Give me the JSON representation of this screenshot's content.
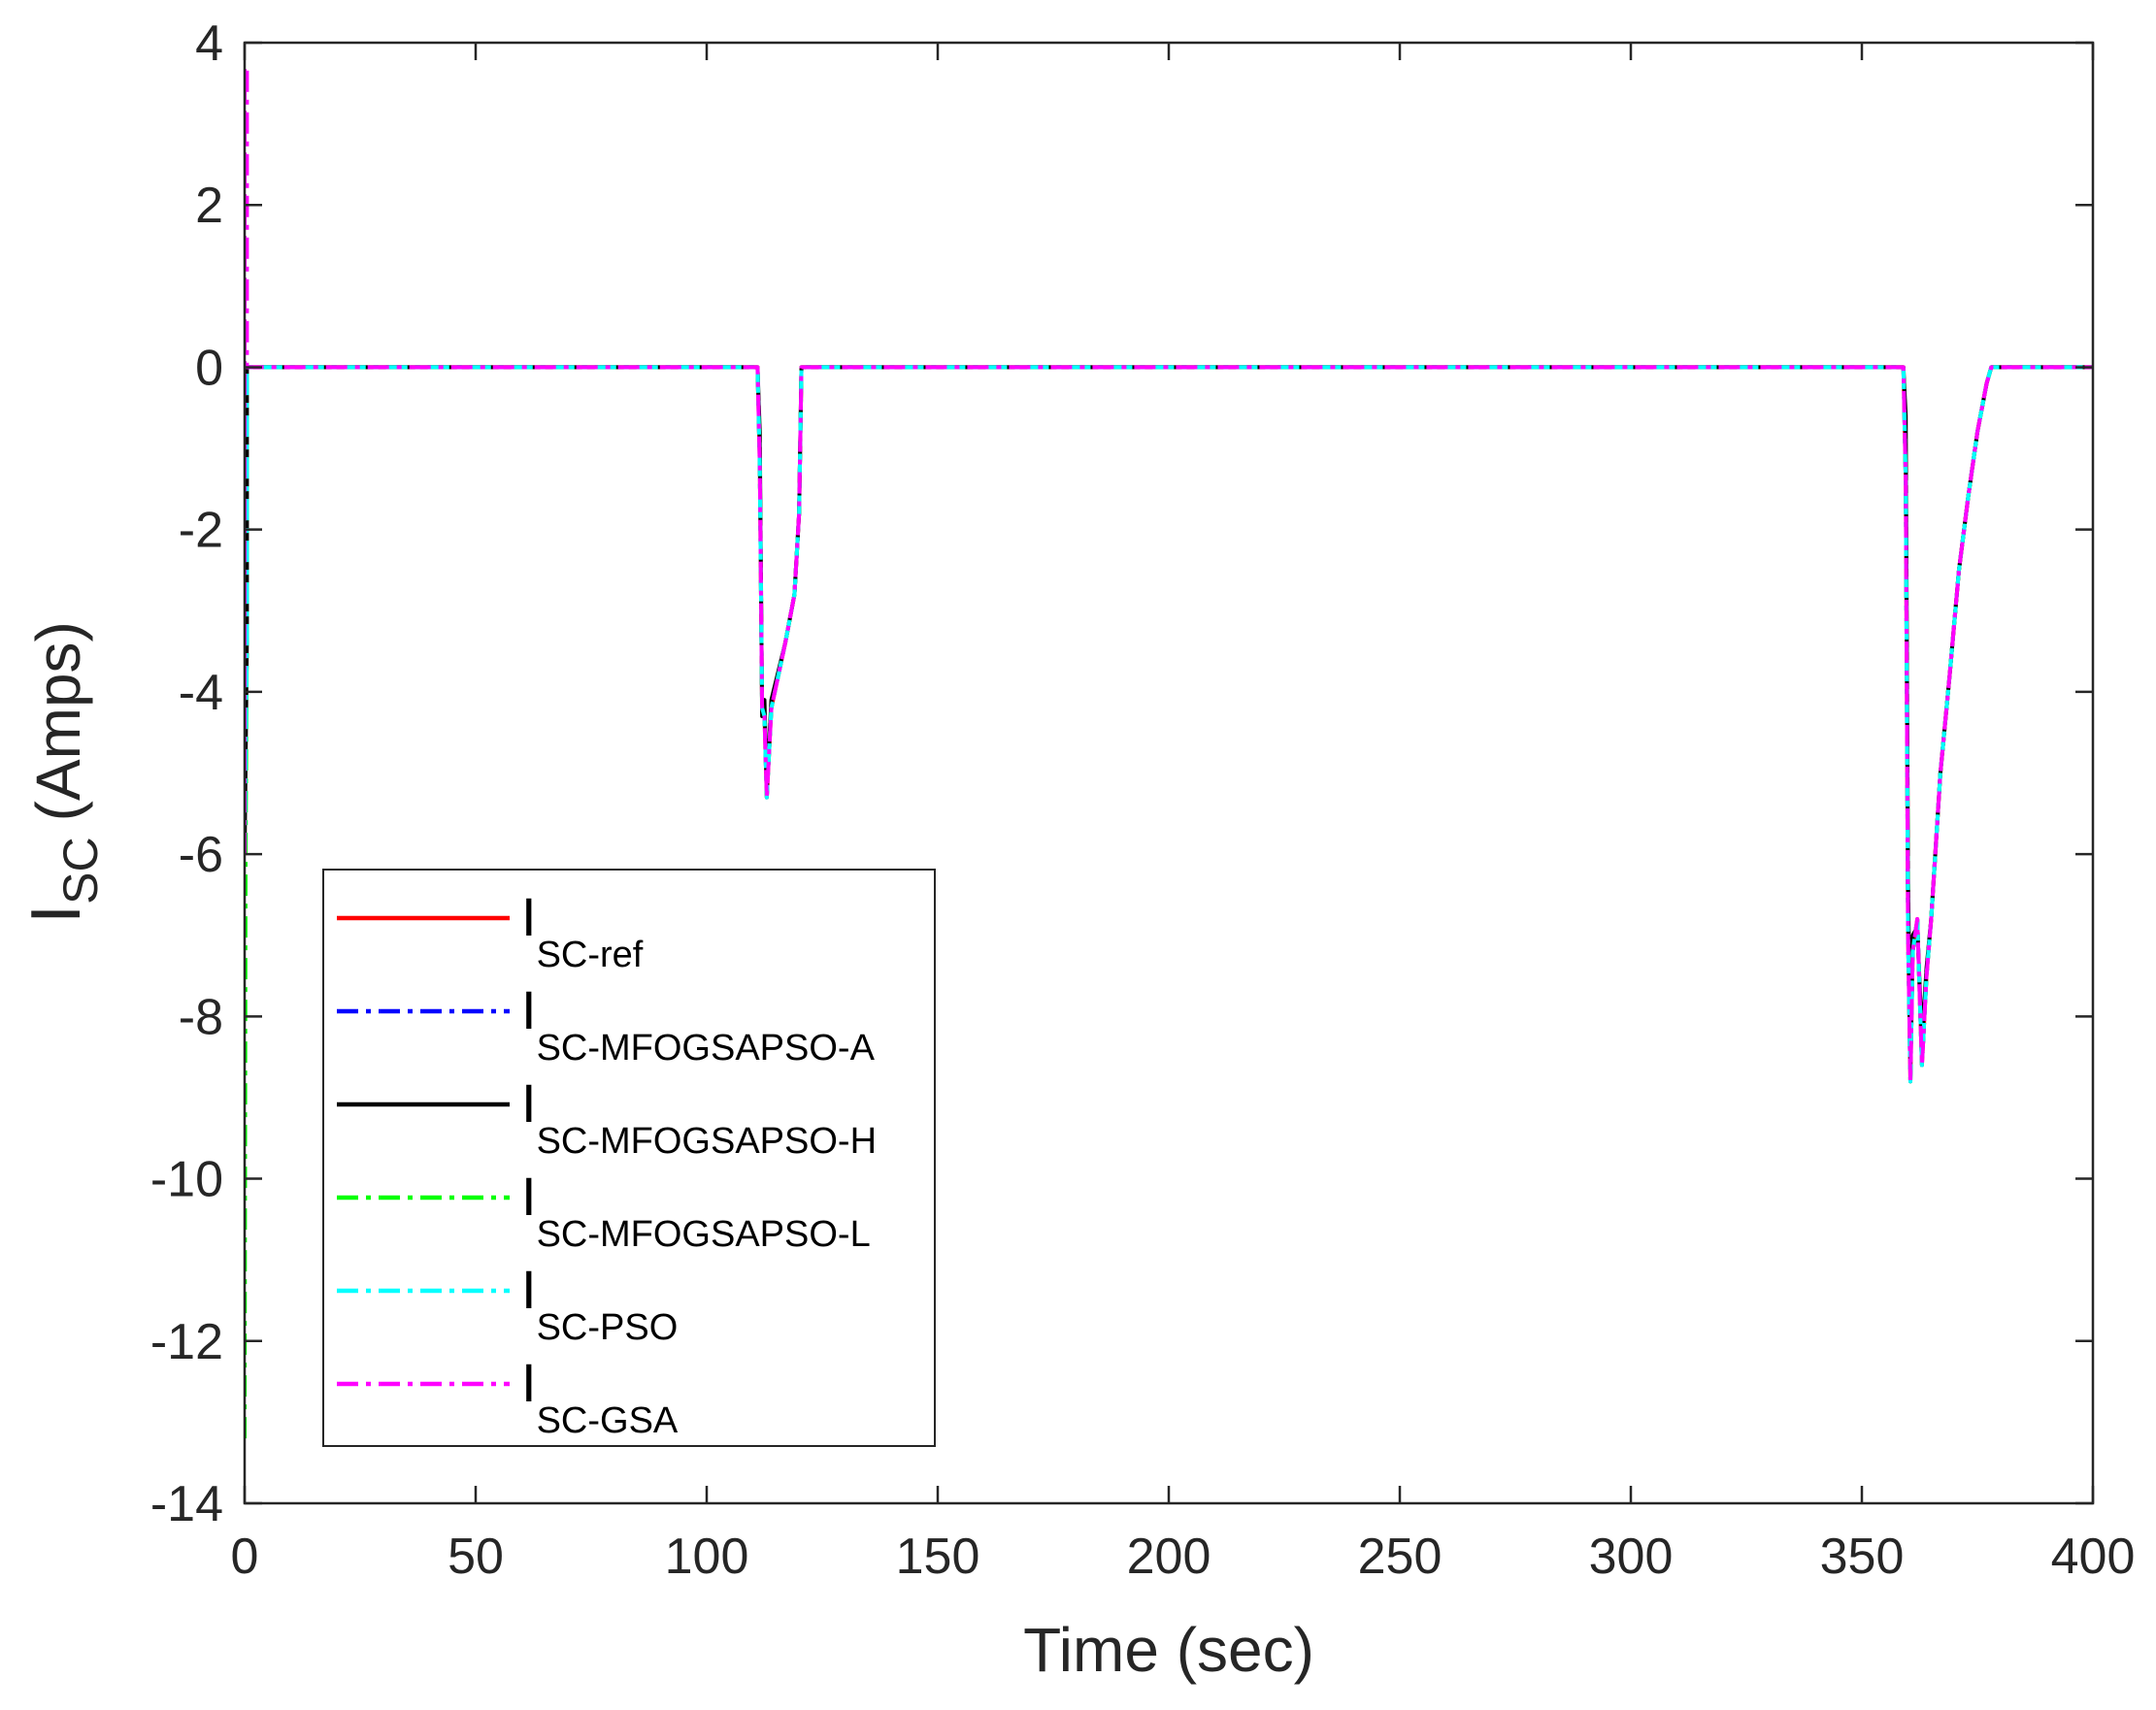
{
  "chart_data": {
    "type": "line",
    "title": "",
    "xlabel": "Time (sec)",
    "ylabel": {
      "main": "I",
      "sub": "SC",
      "unit": "(Amps)"
    },
    "xlim": [
      0,
      400
    ],
    "ylim": [
      -14,
      4
    ],
    "xticks": [
      0,
      50,
      100,
      150,
      200,
      250,
      300,
      350,
      400
    ],
    "yticks": [
      4,
      2,
      0,
      -2,
      -4,
      -6,
      -8,
      -10,
      -12,
      -14
    ],
    "grid": false,
    "box": true,
    "legend_position": "lower-left",
    "series": [
      {
        "name": "I",
        "sub": "SC-ref",
        "color": "#ff0000",
        "style": "solid",
        "x": [
          0,
          0.5,
          0.5,
          111,
          111.5,
          112,
          112.5,
          113,
          114,
          117,
          119,
          120,
          120.5,
          359,
          359.5,
          360,
          360.5,
          361,
          362,
          363,
          364,
          365,
          367,
          369,
          371,
          373,
          375,
          377,
          378,
          400
        ],
        "y": [
          0,
          0,
          0,
          0,
          -1.2,
          -4.2,
          -4.3,
          -5.3,
          -4.2,
          -3.4,
          -2.8,
          -1.8,
          0,
          0,
          -1.4,
          -7.0,
          -8.8,
          -7.2,
          -6.8,
          -8.6,
          -7.5,
          -6.8,
          -5.0,
          -3.8,
          -2.5,
          -1.6,
          -0.8,
          -0.2,
          0,
          0
        ]
      },
      {
        "name": "I",
        "sub": "SC-MFOGSAPSO-A",
        "color": "#0000ff",
        "style": "dashdot",
        "x": [
          0,
          0.5,
          0.5,
          111,
          111.5,
          112,
          112.5,
          113,
          114,
          117,
          119,
          120,
          120.5,
          359,
          359.5,
          360,
          360.5,
          361,
          362,
          363,
          364,
          365,
          367,
          369,
          371,
          373,
          375,
          377,
          378,
          400
        ],
        "y": [
          -6,
          -3.3,
          0,
          0,
          -1.2,
          -4.2,
          -4.3,
          -5.3,
          -4.2,
          -3.4,
          -2.8,
          -1.8,
          0,
          0,
          -1.4,
          -7.0,
          -8.8,
          -7.2,
          -6.8,
          -8.6,
          -7.5,
          -6.8,
          -5.0,
          -3.8,
          -2.5,
          -1.6,
          -0.8,
          -0.2,
          0,
          0
        ]
      },
      {
        "name": "I",
        "sub": "SC-MFOGSAPSO-H",
        "color": "#000000",
        "style": "solid",
        "x": [
          0,
          0.5,
          0.5,
          111,
          111.5,
          112,
          112.5,
          113,
          114,
          117,
          119,
          120,
          120.5,
          359,
          359.5,
          360,
          360.5,
          361,
          362,
          363,
          364,
          365,
          367,
          369,
          371,
          373,
          375,
          377,
          378,
          400
        ],
        "y": [
          -6,
          -3.3,
          0,
          0,
          -0.8,
          -4.3,
          -4.1,
          -5.2,
          -4.1,
          -3.4,
          -2.8,
          -1.8,
          0,
          0,
          -0.6,
          -6.3,
          -8.6,
          -7.0,
          -6.9,
          -8.3,
          -7.4,
          -6.8,
          -5.0,
          -3.8,
          -2.5,
          -1.6,
          -0.8,
          -0.2,
          0,
          0
        ]
      },
      {
        "name": "I",
        "sub": "SC-MFOGSAPSO-L",
        "color": "#00ff00",
        "style": "dashdot",
        "x": [
          0,
          0.2,
          0.5,
          0.5,
          111,
          111.5,
          112,
          112.5,
          113,
          114,
          117,
          119,
          120,
          120.5,
          359,
          359.5,
          360,
          360.5,
          361,
          362,
          363,
          364,
          365,
          367,
          369,
          371,
          373,
          375,
          377,
          378,
          400
        ],
        "y": [
          -13.2,
          -6,
          -3.3,
          0,
          0,
          -1.2,
          -4.2,
          -4.3,
          -5.3,
          -4.2,
          -3.4,
          -2.8,
          -1.8,
          0,
          0,
          -1.4,
          -7.0,
          -8.8,
          -7.2,
          -6.8,
          -8.6,
          -7.5,
          -6.8,
          -5.0,
          -3.8,
          -2.5,
          -1.6,
          -0.8,
          -0.2,
          0,
          0
        ]
      },
      {
        "name": "I",
        "sub": "SC-PSO",
        "color": "#00ffff",
        "style": "dashdot",
        "x": [
          0,
          0.5,
          0.5,
          111,
          111.5,
          112,
          112.5,
          113,
          114,
          117,
          119,
          120,
          120.5,
          359,
          359.5,
          360,
          360.5,
          361,
          362,
          363,
          364,
          365,
          367,
          369,
          371,
          373,
          375,
          377,
          378,
          400
        ],
        "y": [
          -6,
          -3.3,
          0,
          0,
          -1.2,
          -4.2,
          -4.3,
          -5.3,
          -4.2,
          -3.4,
          -2.8,
          -1.8,
          0,
          0,
          -1.4,
          -7.0,
          -8.8,
          -7.2,
          -6.8,
          -8.6,
          -7.5,
          -6.8,
          -5.0,
          -3.8,
          -2.5,
          -1.6,
          -0.8,
          -0.2,
          0,
          0
        ]
      },
      {
        "name": "I",
        "sub": "SC-GSA",
        "color": "#ff00ff",
        "style": "dashdot",
        "x": [
          0,
          0,
          0.5,
          0.5,
          111,
          111.5,
          112,
          112.5,
          113,
          114,
          117,
          119,
          120,
          120.5,
          359,
          359.5,
          360,
          360.5,
          361,
          362,
          363,
          364,
          365,
          367,
          369,
          371,
          373,
          375,
          377,
          378,
          400
        ],
        "y": [
          -6,
          3.7,
          3.7,
          0,
          0,
          -1.2,
          -4.2,
          -4.3,
          -5.3,
          -4.2,
          -3.4,
          -2.8,
          -1.8,
          0,
          0,
          -1.4,
          -7.0,
          -8.8,
          -7.2,
          -6.8,
          -8.6,
          -7.5,
          -6.8,
          -5.0,
          -3.8,
          -2.5,
          -1.6,
          -0.8,
          -0.2,
          0,
          0
        ]
      }
    ]
  }
}
